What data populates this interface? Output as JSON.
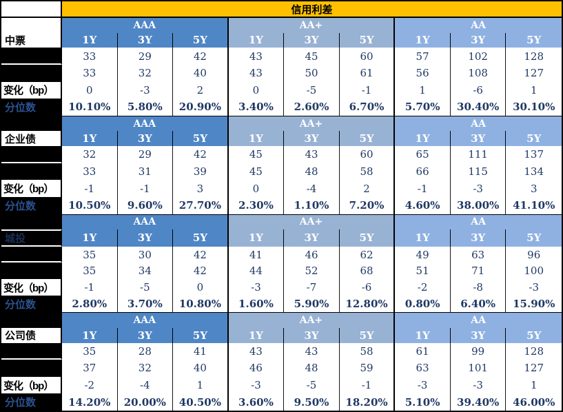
{
  "title": "信用利差",
  "colors": {
    "gold": "#FFC000",
    "aaa_band": "#4F86C6",
    "aa_plus_band": "#98B2D4",
    "aa_band": "#8FB1E2",
    "value_text": "#1F3864",
    "percentile_label_text": "#2B5291",
    "redacted_fill": "#000000"
  },
  "row_labels": {
    "date_row_1": "",
    "date_row_2": "",
    "change": "变化（bp）",
    "percentile": "分位数"
  },
  "chart_data": {
    "type": "table",
    "title": "信用利差",
    "ratings": [
      "AAA",
      "AA+",
      "AA"
    ],
    "tenors": [
      "1Y",
      "3Y",
      "5Y"
    ],
    "row_kinds": [
      "values_row1",
      "values_row2",
      "change_bp",
      "percentile"
    ],
    "sections": [
      {
        "name": "中票",
        "name_redacted": false,
        "values_row1": [
          33,
          29,
          42,
          43,
          45,
          60,
          57,
          102,
          128
        ],
        "values_row2": [
          33,
          32,
          40,
          43,
          50,
          61,
          56,
          108,
          127
        ],
        "change_bp": [
          0,
          -3,
          2,
          0,
          -5,
          -1,
          1,
          -6,
          1
        ],
        "percentile": [
          "10.10%",
          "5.80%",
          "20.90%",
          "3.40%",
          "2.60%",
          "6.70%",
          "5.70%",
          "30.40%",
          "30.10%"
        ]
      },
      {
        "name": "企业债",
        "name_redacted": false,
        "values_row1": [
          32,
          29,
          42,
          45,
          43,
          60,
          65,
          111,
          137
        ],
        "values_row2": [
          33,
          31,
          39,
          45,
          48,
          58,
          66,
          115,
          134
        ],
        "change_bp": [
          -1,
          -1,
          3,
          0,
          -4,
          2,
          -1,
          -3,
          3
        ],
        "percentile": [
          "10.50%",
          "9.60%",
          "27.70%",
          "2.30%",
          "1.10%",
          "7.20%",
          "4.60%",
          "38.00%",
          "41.10%"
        ]
      },
      {
        "name": "城投",
        "name_redacted": true,
        "values_row1": [
          35,
          30,
          42,
          41,
          46,
          62,
          49,
          63,
          96
        ],
        "values_row2": [
          35,
          34,
          42,
          44,
          52,
          68,
          51,
          71,
          100
        ],
        "change_bp": [
          -1,
          -5,
          0,
          -3,
          -7,
          -6,
          -2,
          -8,
          -3
        ],
        "percentile": [
          "2.80%",
          "3.70%",
          "10.80%",
          "1.60%",
          "5.90%",
          "12.80%",
          "0.80%",
          "6.40%",
          "15.90%"
        ]
      },
      {
        "name": "公司债",
        "name_redacted": false,
        "values_row1": [
          35,
          28,
          41,
          43,
          43,
          58,
          61,
          99,
          128
        ],
        "values_row2": [
          37,
          32,
          40,
          46,
          48,
          59,
          63,
          101,
          127
        ],
        "change_bp": [
          -2,
          -4,
          1,
          -3,
          -5,
          -1,
          -3,
          -3,
          1
        ],
        "percentile": [
          "14.20%",
          "20.00%",
          "40.50%",
          "3.60%",
          "9.50%",
          "18.20%",
          "5.10%",
          "39.40%",
          "46.00%"
        ]
      }
    ]
  }
}
